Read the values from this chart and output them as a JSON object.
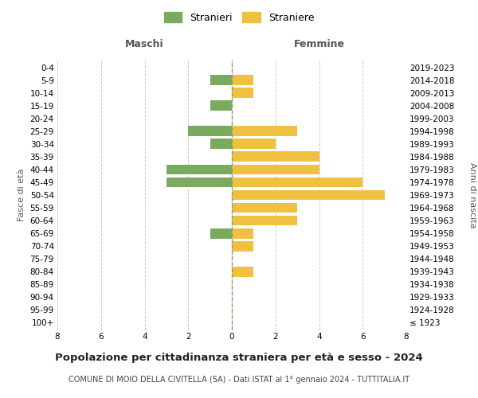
{
  "age_groups": [
    "100+",
    "95-99",
    "90-94",
    "85-89",
    "80-84",
    "75-79",
    "70-74",
    "65-69",
    "60-64",
    "55-59",
    "50-54",
    "45-49",
    "40-44",
    "35-39",
    "30-34",
    "25-29",
    "20-24",
    "15-19",
    "10-14",
    "5-9",
    "0-4"
  ],
  "birth_years": [
    "≤ 1923",
    "1924-1928",
    "1929-1933",
    "1934-1938",
    "1939-1943",
    "1944-1948",
    "1949-1953",
    "1954-1958",
    "1959-1963",
    "1964-1968",
    "1969-1973",
    "1974-1978",
    "1979-1983",
    "1984-1988",
    "1989-1993",
    "1994-1998",
    "1999-2003",
    "2004-2008",
    "2009-2013",
    "2014-2018",
    "2019-2023"
  ],
  "maschi": [
    0,
    0,
    0,
    0,
    0,
    0,
    0,
    1,
    0,
    0,
    0,
    3,
    3,
    0,
    1,
    2,
    0,
    1,
    0,
    1,
    0
  ],
  "femmine": [
    0,
    0,
    0,
    0,
    1,
    0,
    1,
    1,
    3,
    3,
    7,
    6,
    4,
    4,
    2,
    3,
    0,
    0,
    1,
    1,
    0
  ],
  "color_maschi": "#7aaa5e",
  "color_femmine": "#f0c040",
  "background_color": "#ffffff",
  "grid_color": "#cccccc",
  "title": "Popolazione per cittadinanza straniera per età e sesso - 2024",
  "subtitle": "COMUNE DI MOIO DELLA CIVITELLA (SA) - Dati ISTAT al 1° gennaio 2024 - TUTTITALIA.IT",
  "xlabel_left": "Maschi",
  "xlabel_right": "Femmine",
  "ylabel_left": "Fasce di età",
  "ylabel_right": "Anni di nascita",
  "legend_maschi": "Stranieri",
  "legend_femmine": "Straniere",
  "xlim": 8,
  "bar_height": 0.8
}
